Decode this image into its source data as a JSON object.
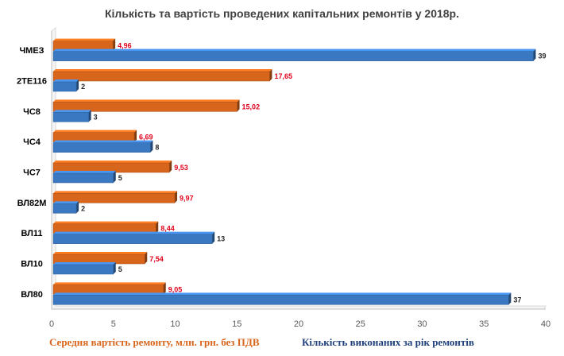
{
  "chart_data": {
    "type": "bar",
    "orientation": "horizontal",
    "title": "Кількість та вартість проведених капітальних ремонтів у 2018р.",
    "categories": [
      "ЧМЕЗ",
      "2ТЕ116",
      "ЧС8",
      "ЧС4",
      "ЧС7",
      "ВЛ82М",
      "ВЛ11",
      "ВЛ10",
      "ВЛ80"
    ],
    "series": [
      {
        "name": "Середня вартість ремонту, млн. грн. без ПДВ",
        "color": "#d8651c",
        "values": [
          4.96,
          17.65,
          15.02,
          6.69,
          9.53,
          9.97,
          8.44,
          7.54,
          9.05
        ],
        "labels": [
          "4,96",
          "17,65",
          "15,02",
          "6,69",
          "9,53",
          "9,97",
          "8,44",
          "7,54",
          "9,05"
        ]
      },
      {
        "name": "Кількість виконаних за рік ремонтів",
        "color": "#3a78c2",
        "values": [
          39,
          2,
          3,
          8,
          5,
          2,
          13,
          5,
          37
        ],
        "labels": [
          "39",
          "2",
          "3",
          "8",
          "5",
          "2",
          "13",
          "5",
          "37"
        ]
      }
    ],
    "xlim": [
      0,
      40
    ],
    "xticks": [
      "0",
      "5",
      "10",
      "15",
      "20",
      "25",
      "30",
      "35",
      "40"
    ],
    "grid": false,
    "legend_position": "bottom",
    "bar_style": "3d"
  }
}
